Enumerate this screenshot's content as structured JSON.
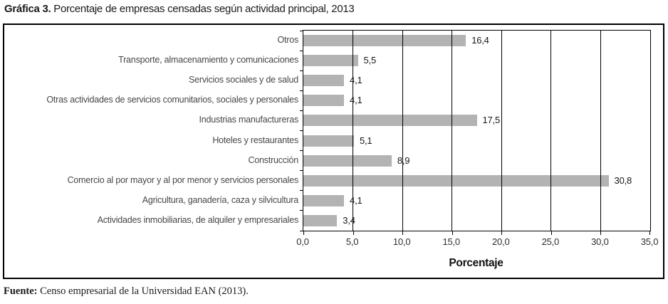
{
  "title": {
    "prefix": "Gráfica 3.",
    "text": " Porcentaje de empresas censadas según actividad principal, 2013"
  },
  "chart_data": {
    "type": "bar",
    "orientation": "horizontal",
    "title": "Gráfica 3. Porcentaje de empresas censadas según actividad principal, 2013",
    "categories": [
      "Otros",
      "Transporte, almacenamiento y comunicaciones",
      "Servicios sociales y de salud",
      "Otras actividades de servicios comunitarios, sociales y personales",
      "Industrias manufactureras",
      "Hoteles y restaurantes",
      "Construcción",
      "Comercio al por mayor y al por menor y servicios personales",
      "Agricultura, ganadería, caza y silvicultura",
      "Actividades inmobiliarias, de alquiler y empresariales"
    ],
    "values": [
      16.4,
      5.5,
      4.1,
      4.1,
      17.5,
      5.1,
      8.9,
      30.8,
      4.1,
      3.4
    ],
    "value_labels": [
      "16,4",
      "5,5",
      "4,1",
      "4,1",
      "17,5",
      "5,1",
      "8,9",
      "30,8",
      "4,1",
      "3,4"
    ],
    "xlabel": "Porcentaje",
    "ylabel": "",
    "xlim": [
      0,
      35
    ],
    "x_ticks": [
      0,
      5,
      10,
      15,
      20,
      25,
      30,
      35
    ],
    "x_tick_labels": [
      "0,0",
      "5,0",
      "10,0",
      "15,0",
      "20,0",
      "25,0",
      "30,0",
      "35,0"
    ],
    "bar_color": "#b3b3b3",
    "grid": true,
    "gridlines_over_bars": true,
    "legend_position": "none"
  },
  "source": {
    "label": "Fuente:",
    "text": " Censo empresarial de la Universidad EAN (2013)."
  }
}
